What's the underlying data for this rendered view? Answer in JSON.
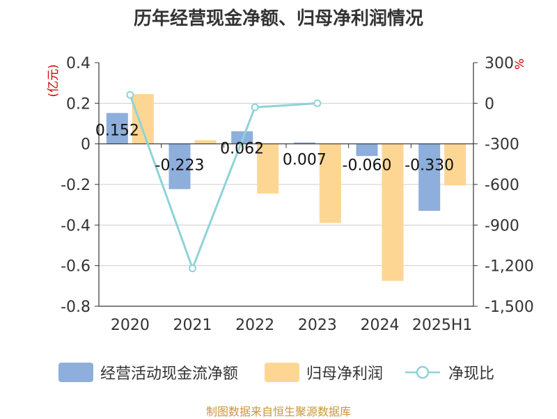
{
  "chart_data": {
    "type": "bar",
    "title": "历年经营现金净额、归母净利润情况",
    "categories": [
      "2020",
      "2021",
      "2022",
      "2023",
      "2024",
      "2025H1"
    ],
    "left_axis": {
      "unit": "(亿元)",
      "range": [
        -0.8,
        0.4
      ],
      "ticks": [
        "0.4",
        "0.2",
        "0",
        "-0.2",
        "-0.4",
        "-0.6",
        "-0.8"
      ]
    },
    "right_axis": {
      "unit": "%",
      "range": [
        -1500,
        300
      ],
      "ticks": [
        "300",
        "0",
        "-300",
        "-600",
        "-900",
        "-1,200",
        "-1,500"
      ]
    },
    "series": [
      {
        "name": "经营活动现金流净额",
        "type": "bar",
        "axis": "left",
        "color": "#8eaedb",
        "values": [
          0.152,
          -0.223,
          0.062,
          0.007,
          -0.06,
          -0.33
        ],
        "labels": [
          "0.152",
          "-0.223",
          "0.062",
          "0.007",
          "-0.060",
          "-0.330"
        ]
      },
      {
        "name": "归母净利润",
        "type": "bar",
        "axis": "left",
        "color": "#fed694",
        "values": [
          0.245,
          0.018,
          -0.245,
          -0.39,
          -0.675,
          -0.205
        ]
      },
      {
        "name": "净现比",
        "type": "line",
        "axis": "right",
        "color": "#8dd3d8",
        "values": [
          62,
          -1220,
          -30,
          0,
          null,
          null
        ]
      }
    ],
    "grid": true,
    "legend": "bottom"
  },
  "source_note": "制图数据来自恒生聚源数据库",
  "colors": {
    "axis": "#333333",
    "grid": "#cccccc",
    "unit_text": "#cc0000",
    "tick_text": "#333333"
  }
}
